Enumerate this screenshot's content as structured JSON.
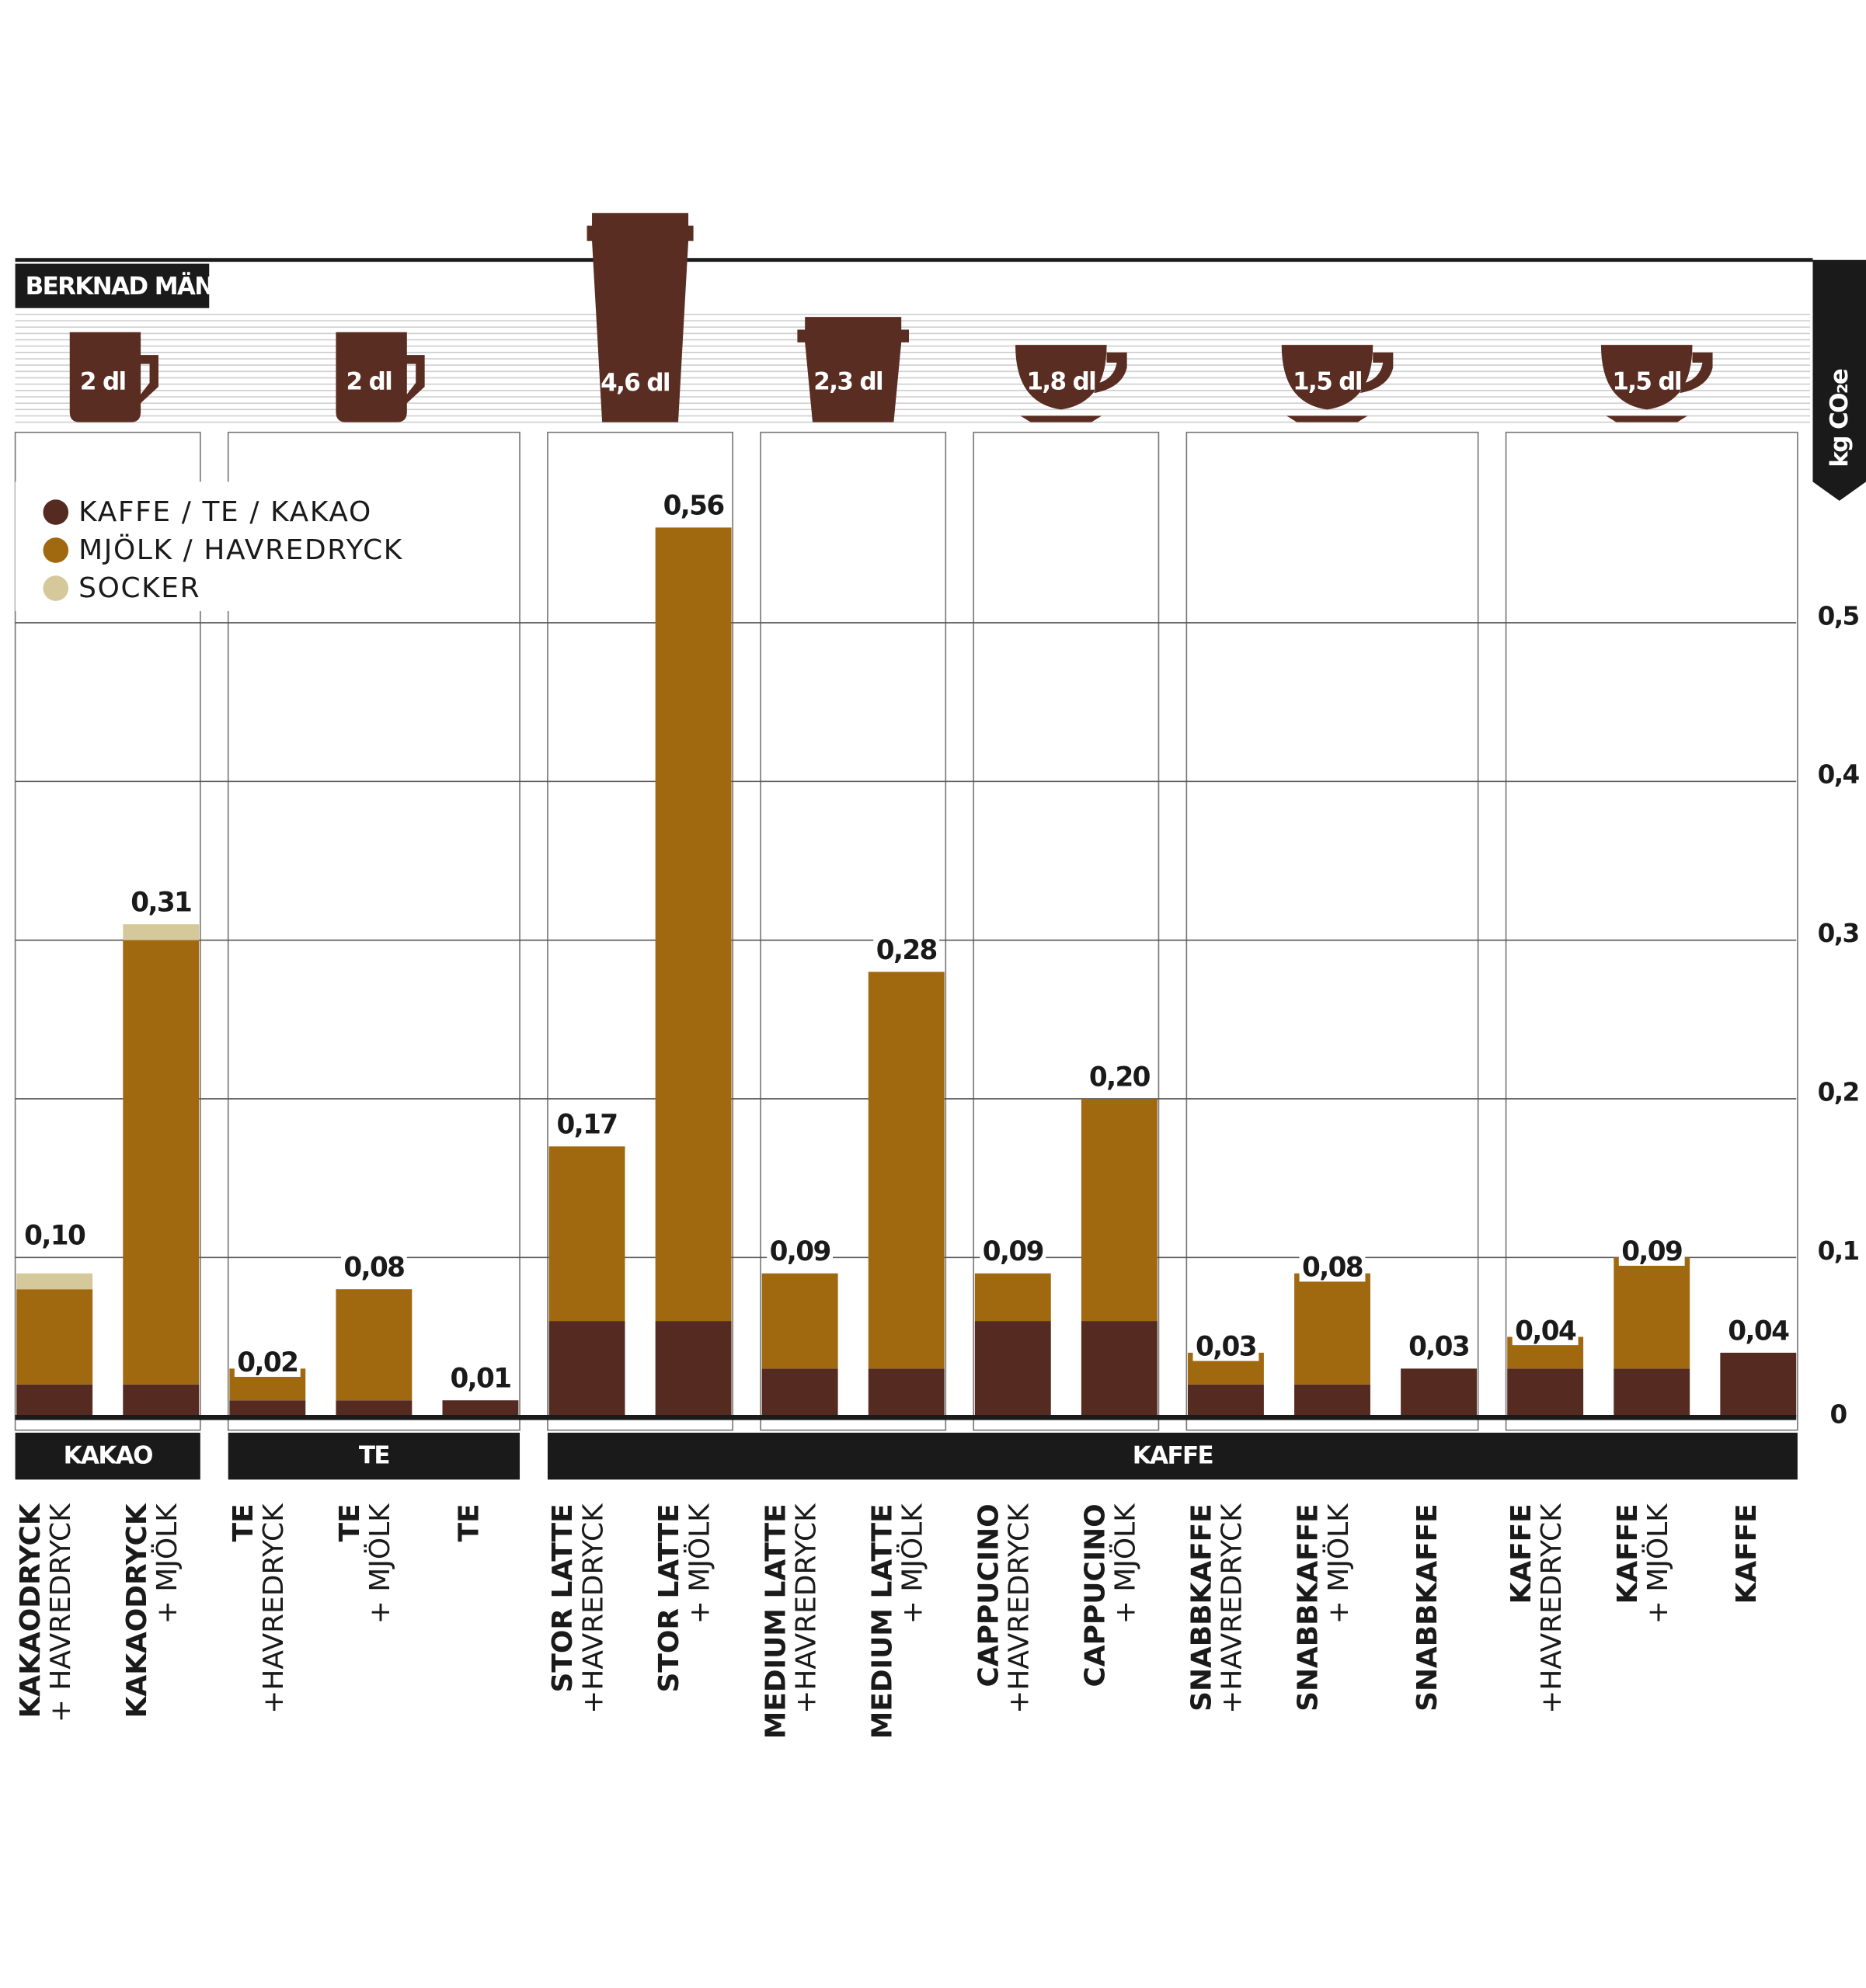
{
  "chart_data": {
    "type": "stacked_bar",
    "amount_label": "BERKNAD MÄNGD",
    "y_label": "kg CO₂e",
    "serving_sizes": [
      "2 dl",
      "2 dl",
      "4,6 dl",
      "2,3 dl",
      "1,8 dl",
      "1,5 dl",
      "1,5 dl"
    ],
    "groups": [
      "KAKAO",
      "TE",
      "KAFFE"
    ],
    "categories": [
      {
        "name": "KAKAODRYCK",
        "sub": "+ HAVREDRYCK"
      },
      {
        "name": "KAKAODRYCK",
        "sub": "+ MJÖLK"
      },
      {
        "name": "TE",
        "sub": "+HAVREDRYCK"
      },
      {
        "name": "TE",
        "sub": "+ MJÖLK"
      },
      {
        "name": "TE"
      },
      {
        "name": "STOR LATTE",
        "sub": "+HAVREDRYCK"
      },
      {
        "name": "STOR LATTE",
        "sub": "+ MJÖLK"
      },
      {
        "name": "MEDIUM LATTE",
        "sub": "+HAVREDRYCK"
      },
      {
        "name": "MEDIUM LATTE",
        "sub": "+ MJÖLK"
      },
      {
        "name": "CAPPUCINO",
        "sub": "+HAVREDRYCK"
      },
      {
        "name": "CAPPUCINO",
        "sub": "+ MJÖLK"
      },
      {
        "name": "SNABBKAFFE",
        "sub": "+HAVREDRYCK"
      },
      {
        "name": "SNABBKAFFE",
        "sub": "+ MJÖLK"
      },
      {
        "name": "SNABBKAFFE"
      },
      {
        "name": "KAFFE",
        "sub": "+HAVREDRYCK"
      },
      {
        "name": "KAFFE",
        "sub": "+ MJÖLK"
      },
      {
        "name": "KAFFE"
      }
    ],
    "series": [
      {
        "name": "KAFFE / TE / KAKAO",
        "color": "#552b21",
        "values": [
          0.02,
          0.02,
          0.01,
          0.01,
          0.01,
          0.06,
          0.06,
          0.03,
          0.03,
          0.06,
          0.06,
          0.02,
          0.02,
          0.03,
          0.03,
          0.03,
          0.04
        ]
      },
      {
        "name": "MJÖLK / HAVREDRYCK",
        "color": "#a0690f",
        "values": [
          0.06,
          0.28,
          0.02,
          0.07,
          0,
          0.11,
          0.5,
          0.06,
          0.25,
          0.03,
          0.14,
          0.02,
          0.07,
          0,
          0.02,
          0.07,
          0
        ]
      },
      {
        "name": "SOCKER",
        "color": "#d5c99c",
        "values": [
          0.01,
          0.01,
          0,
          0,
          0,
          0,
          0,
          0,
          0,
          0,
          0,
          0,
          0,
          0,
          0,
          0,
          0
        ]
      }
    ],
    "totals": [
      0.1,
      0.31,
      0.02,
      0.08,
      0.01,
      0.17,
      0.56,
      0.09,
      0.28,
      0.09,
      0.2,
      0.03,
      0.08,
      0.03,
      0.04,
      0.09,
      0.04
    ],
    "total_labels": [
      "0,10",
      "0,31",
      "0,02",
      "0,08",
      "0,01",
      "0,17",
      "0,56",
      "0,09",
      "0,28",
      "0,09",
      "0,20",
      "0,03",
      "0,08",
      "0,03",
      "0,04",
      "0,09",
      "0,04"
    ],
    "ylim": [
      0,
      0.62
    ],
    "yticks": [
      0,
      {
        "value": 0.1,
        "label": "0,1"
      },
      {
        "value": 0.2,
        "label": "0,2"
      },
      {
        "value": 0.3,
        "label": "0,3"
      },
      {
        "value": 0.4,
        "label": "0,4"
      },
      {
        "value": 0.5,
        "label": "0,5"
      }
    ],
    "grid": true,
    "legend": "upper left"
  }
}
